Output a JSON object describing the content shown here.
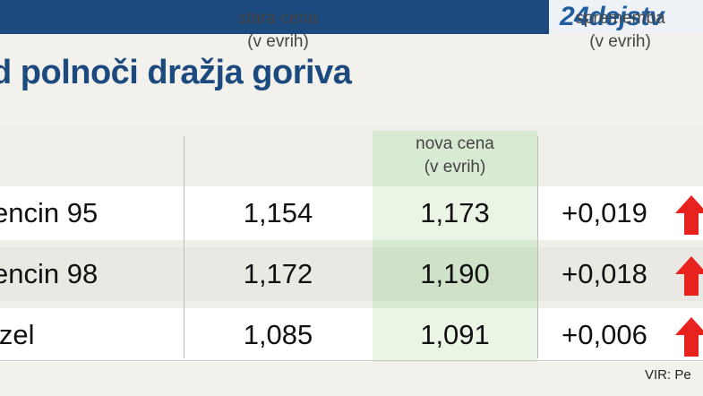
{
  "header": {
    "brand": "24dejstv",
    "title": "d polnoči dražja goriva"
  },
  "table": {
    "columns": {
      "old_line1": "stara cena",
      "old_line2": "(v evrih)",
      "new_line1": "nova cena",
      "new_line2": "(v evrih)",
      "change_line1": "sprememba",
      "change_line2": "(v evrih)"
    },
    "rows": [
      {
        "name": "encin 95",
        "old": "1,154",
        "new": "1,173",
        "change": "+0,019",
        "trend": "up-arrow-icon"
      },
      {
        "name": "encin 98",
        "old": "1,172",
        "new": "1,190",
        "change": "+0,018",
        "trend": "up-arrow-icon"
      },
      {
        "name": "izel",
        "old": "1,085",
        "new": "1,091",
        "change": "+0,006",
        "trend": "up-arrow-icon"
      }
    ]
  },
  "footer": {
    "source": "VIR: Pe"
  },
  "colors": {
    "brand_blue": "#1c4a7f",
    "highlight_green": "#d8ead3",
    "arrow_red": "#e8231f"
  }
}
